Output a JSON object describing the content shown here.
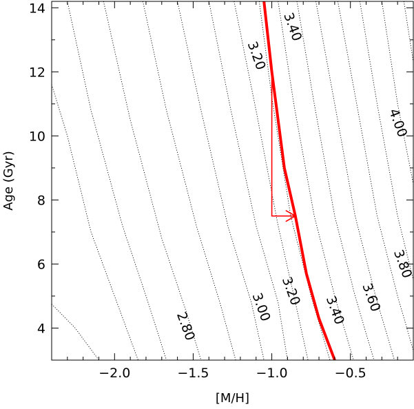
{
  "chart_data": {
    "type": "line",
    "title": "",
    "xlabel": "[M/H]",
    "ylabel": "Age (Gyr)",
    "xlim": [
      -2.4,
      -0.1
    ],
    "ylim": [
      3.0,
      14.2
    ],
    "x_ticks": [
      -2.0,
      -1.5,
      -1.0,
      -0.5
    ],
    "x_tick_labels": [
      "−2.0",
      "−1.5",
      "−1.0",
      "−0.5"
    ],
    "y_ticks": [
      4,
      6,
      8,
      10,
      12,
      14
    ],
    "y_tick_labels": [
      "4",
      "6",
      "8",
      "10",
      "12",
      "14"
    ],
    "grid": false,
    "colors": {
      "highlight": "#ff0000",
      "contour": "#000000"
    },
    "contours": [
      {
        "points": [
          [
            -2.4,
            4.75
          ],
          [
            -2.25,
            4.0
          ],
          [
            -2.1,
            3.0
          ]
        ]
      },
      {
        "points": [
          [
            -2.4,
            11.6
          ],
          [
            -2.3,
            10.0
          ],
          [
            -2.15,
            7.0
          ],
          [
            -2.0,
            5.0
          ],
          [
            -1.85,
            3.0
          ]
        ]
      },
      {
        "points": [
          [
            -2.3,
            14.2
          ],
          [
            -2.15,
            10.8
          ],
          [
            -1.95,
            7.2
          ],
          [
            -1.8,
            5.0
          ],
          [
            -1.67,
            3.0
          ]
        ]
      },
      {
        "points": [
          [
            -2.07,
            14.2
          ],
          [
            -1.9,
            10.5
          ],
          [
            -1.7,
            6.8
          ],
          [
            -1.55,
            4.6
          ],
          [
            -1.45,
            3.0
          ]
        ]
      },
      {
        "points": [
          [
            -1.82,
            14.2
          ],
          [
            -1.67,
            10.8
          ],
          [
            -1.48,
            7.2
          ],
          [
            -1.33,
            4.8
          ],
          [
            -1.23,
            3.0
          ]
        ],
        "label": "2.80",
        "label_at": [
          -1.55,
          4.05
        ]
      },
      {
        "points": [
          [
            -1.6,
            14.2
          ],
          [
            -1.45,
            10.8
          ],
          [
            -1.28,
            7.2
          ],
          [
            -1.13,
            4.8
          ],
          [
            -1.05,
            3.0
          ]
        ]
      },
      {
        "points": [
          [
            -1.4,
            14.2
          ],
          [
            -1.26,
            10.8
          ],
          [
            -1.1,
            7.2
          ],
          [
            -0.96,
            4.8
          ],
          [
            -0.9,
            3.0
          ]
        ],
        "label": "3.00",
        "label_at": [
          -1.07,
          4.65
        ]
      },
      {
        "points": [
          [
            -1.24,
            14.2
          ],
          [
            -1.1,
            10.8
          ],
          [
            -0.96,
            7.2
          ],
          [
            -0.85,
            4.8
          ],
          [
            -0.77,
            3.0
          ]
        ]
      },
      {
        "points": [
          [
            -1.08,
            14.2
          ],
          [
            -1.0,
            11.2
          ],
          [
            -0.88,
            7.5
          ],
          [
            -0.75,
            5.0
          ],
          [
            -0.63,
            3.0
          ]
        ],
        "label": "3.20",
        "label_at": [
          -0.88,
          5.15
        ]
      },
      {
        "points": [
          [
            -0.96,
            14.2
          ],
          [
            -0.86,
            11.0
          ],
          [
            -0.73,
            7.5
          ],
          [
            -0.6,
            5.0
          ],
          [
            -0.48,
            3.0
          ]
        ],
        "label": "3.40",
        "label_at": [
          -0.6,
          4.55
        ]
      },
      {
        "points": [
          [
            -0.84,
            14.2
          ],
          [
            -0.73,
            11.0
          ],
          [
            -0.6,
            7.5
          ],
          [
            -0.47,
            5.0
          ],
          [
            -0.35,
            3.0
          ]
        ]
      },
      {
        "points": [
          [
            -0.72,
            14.2
          ],
          [
            -0.6,
            11.0
          ],
          [
            -0.47,
            7.5
          ],
          [
            -0.34,
            5.0
          ],
          [
            -0.22,
            3.0
          ]
        ],
        "label": "3.60",
        "label_at": [
          -0.37,
          4.95
        ]
      },
      {
        "points": [
          [
            -0.58,
            14.2
          ],
          [
            -0.46,
            11.0
          ],
          [
            -0.33,
            7.5
          ],
          [
            -0.2,
            5.0
          ],
          [
            -0.1,
            3.3
          ]
        ]
      },
      {
        "points": [
          [
            -0.44,
            14.2
          ],
          [
            -0.33,
            11.0
          ],
          [
            -0.2,
            7.5
          ],
          [
            -0.1,
            5.5
          ]
        ],
        "label": "3.80",
        "label_at": [
          -0.17,
          6.0
        ]
      },
      {
        "points": [
          [
            -0.3,
            14.2
          ],
          [
            -0.2,
            11.0
          ],
          [
            -0.1,
            8.5
          ]
        ],
        "label": "4.00",
        "label_at": [
          -0.2,
          10.4
        ]
      },
      {
        "points": [
          [
            -0.16,
            14.2
          ],
          [
            -0.1,
            12.3
          ]
        ]
      }
    ],
    "extra_labels": [
      {
        "text": "3.20",
        "at": [
          -1.1,
          12.5
        ]
      },
      {
        "text": "3.40",
        "at": [
          -0.87,
          13.4
        ]
      }
    ],
    "highlight": {
      "points": [
        [
          -1.05,
          14.2
        ],
        [
          -1.0,
          12.0
        ],
        [
          -0.92,
          9.0
        ],
        [
          -0.85,
          7.5
        ],
        [
          -0.78,
          5.7
        ],
        [
          -0.7,
          4.3
        ],
        [
          -0.6,
          3.0
        ]
      ],
      "arrow": {
        "from": [
          -1.0,
          12.0
        ],
        "corner": [
          -1.0,
          7.5
        ],
        "to": [
          -0.85,
          7.5
        ]
      }
    }
  }
}
